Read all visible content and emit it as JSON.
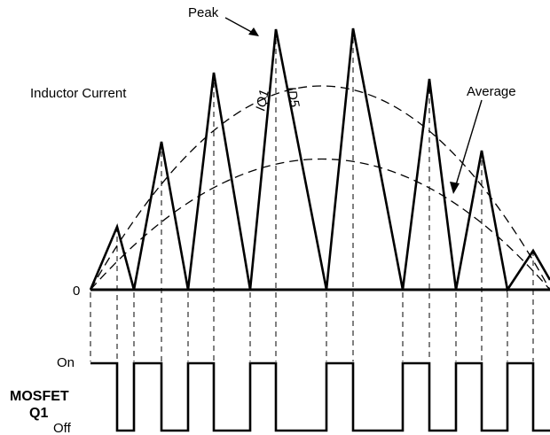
{
  "labels": {
    "peak": "Peak",
    "inductor_current": "Inductor Current",
    "iq1": "IQ1",
    "id5": "ID5",
    "average": "Average",
    "zero": "0",
    "on": "On",
    "off": "Off",
    "mosfet": "MOSFET",
    "q1": "Q1"
  },
  "colors": {
    "line": "#000000",
    "background": "#ffffff"
  }
}
